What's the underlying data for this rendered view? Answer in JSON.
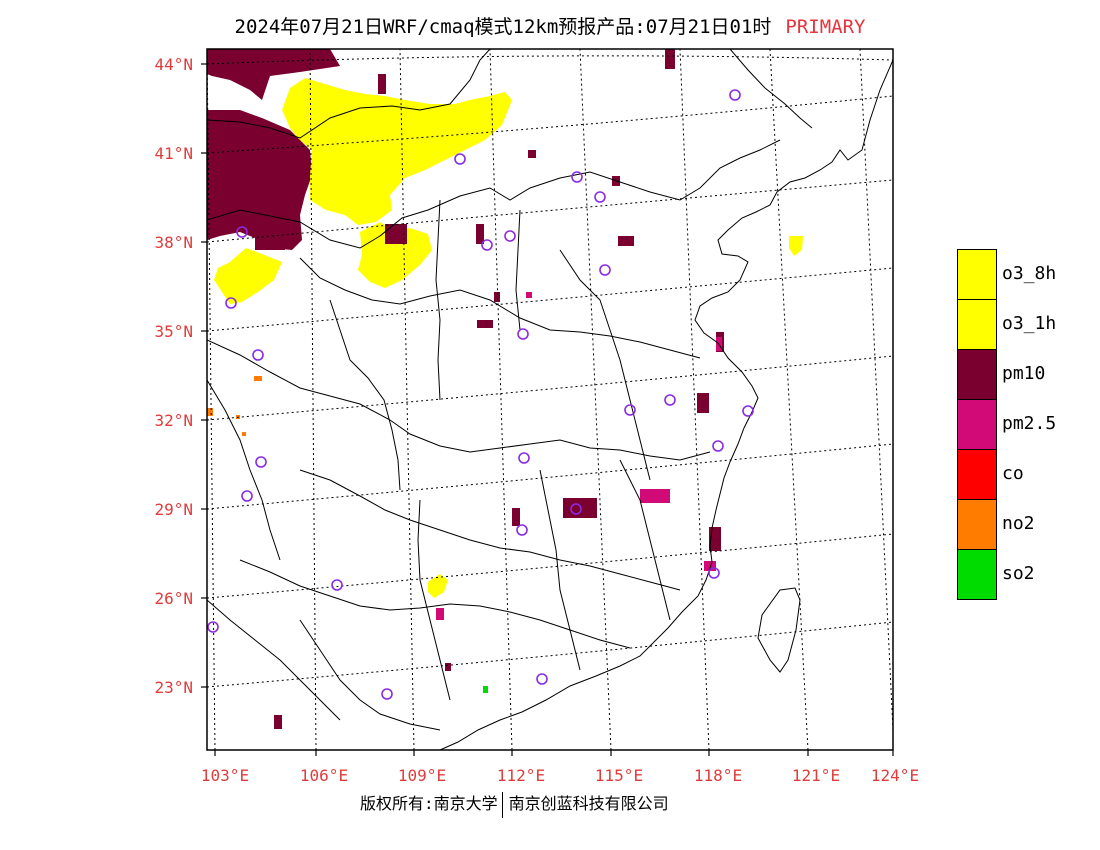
{
  "title": {
    "main": "2024年07月21日WRF/cmaq模式12km预报产品:07月21日01时",
    "tag": "PRIMARY"
  },
  "lat_labels": [
    "44°N",
    "41°N",
    "38°N",
    "35°N",
    "32°N",
    "29°N",
    "26°N",
    "23°N"
  ],
  "lon_labels": [
    "103°E",
    "106°E",
    "109°E",
    "112°E",
    "115°E",
    "118°E",
    "121°E",
    "124°E"
  ],
  "legend": [
    {
      "label": "o3_8h",
      "color": "#ffff00"
    },
    {
      "label": "o3_1h",
      "color": "#ffff00"
    },
    {
      "label": "pm10",
      "color": "#7a0030"
    },
    {
      "label": "pm2.5",
      "color": "#d20a78"
    },
    {
      "label": "co",
      "color": "#ff0000"
    },
    {
      "label": "no2",
      "color": "#ff7c00"
    },
    {
      "label": "so2",
      "color": "#00dc00"
    }
  ],
  "colors": {
    "o3": "#ffff00",
    "pm10": "#7a0030",
    "pm25": "#d20a78",
    "no2": "#ff7c00",
    "so2": "#00dc00",
    "station": "#8a2be2",
    "axis_label": "#e03c3c"
  },
  "footer": {
    "left": "版权所有:南京大学",
    "right": "南京创蓝科技有限公司"
  }
}
